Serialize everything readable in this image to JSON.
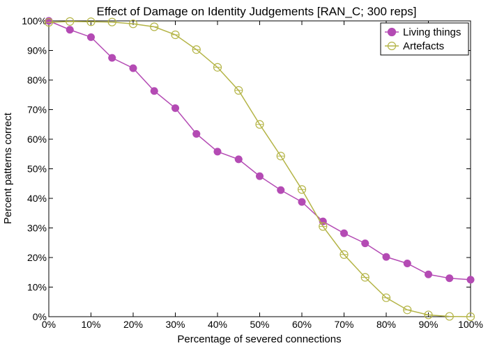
{
  "chart_data": {
    "type": "line",
    "title": "Effect of Damage on Identity Judgements [RAN_C; 300 reps]",
    "xlabel": "Percentage of severed connections",
    "ylabel": "Percent patterns correct",
    "xlim": [
      0,
      100
    ],
    "ylim": [
      0,
      100
    ],
    "x_ticks": [
      "0%",
      "10%",
      "20%",
      "30%",
      "40%",
      "50%",
      "60%",
      "70%",
      "80%",
      "90%",
      "100%"
    ],
    "y_ticks": [
      "0%",
      "10%",
      "20%",
      "30%",
      "40%",
      "50%",
      "60%",
      "70%",
      "80%",
      "90%",
      "100%"
    ],
    "legend_position": "top-right",
    "grid": false,
    "x": [
      0,
      5,
      10,
      15,
      20,
      25,
      30,
      35,
      40,
      45,
      50,
      55,
      60,
      65,
      70,
      75,
      80,
      85,
      90,
      95,
      100
    ],
    "series": [
      {
        "name": "Living things",
        "color": "#b44bb4",
        "marker": "filled-circle",
        "values": [
          100,
          97,
          94.5,
          87.5,
          84,
          76.3,
          70.5,
          61.8,
          55.8,
          53.2,
          47.5,
          42.8,
          38.8,
          32.2,
          28.2,
          24.8,
          20.2,
          18,
          14.3,
          13,
          12.5
        ]
      },
      {
        "name": "Artefacts",
        "color": "#b4b446",
        "marker": "open-circle",
        "values": [
          99.5,
          99.8,
          99.7,
          99.6,
          99,
          98,
          95.3,
          90.3,
          84.3,
          76.5,
          65,
          54.3,
          43,
          30.5,
          21,
          13.3,
          6.4,
          2.3,
          0.6,
          0.1,
          0
        ]
      }
    ]
  }
}
